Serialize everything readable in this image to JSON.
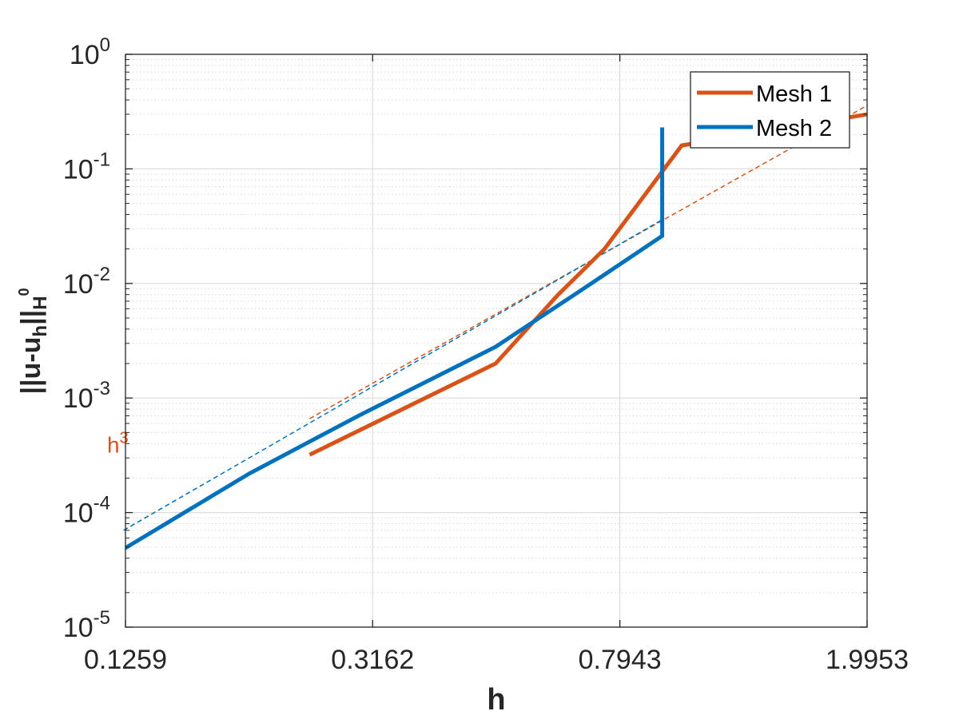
{
  "chart_data": {
    "type": "line",
    "x_scale": "log",
    "y_scale": "log",
    "xlim": [
      0.1259,
      1.9953
    ],
    "ylim": [
      1e-05,
      1
    ],
    "x_ticks": [
      0.1259,
      0.3162,
      0.7943,
      1.9953
    ],
    "x_tick_labels": [
      "0.1259",
      "0.3162",
      "0.7943",
      "1.9953"
    ],
    "y_ticks": [
      {
        "value": 1e-05,
        "base": "10",
        "exp": "-5"
      },
      {
        "value": 0.0001,
        "base": "10",
        "exp": "-4"
      },
      {
        "value": 0.001,
        "base": "10",
        "exp": "-3"
      },
      {
        "value": 0.01,
        "base": "10",
        "exp": "-2"
      },
      {
        "value": 0.1,
        "base": "10",
        "exp": "-1"
      },
      {
        "value": 1,
        "base": "10",
        "exp": "0"
      }
    ],
    "xlabel": "h",
    "ylabel": {
      "main": "||u-u",
      "sub1": "h",
      "mid": "||",
      "sub2": "H",
      "sup": "0"
    },
    "grid": true,
    "minor_grid": true,
    "legend_position": "top-right",
    "series": [
      {
        "name": "Mesh 1",
        "color": "#D95319",
        "x": [
          0.25,
          0.5,
          0.63,
          0.75,
          1.0,
          2.0
        ],
        "y": [
          0.00032,
          0.002,
          0.0079,
          0.02,
          0.16,
          0.3
        ]
      },
      {
        "name": "Mesh 2",
        "color": "#0072BD",
        "x": [
          0.125,
          0.2,
          0.3,
          0.5,
          0.7,
          0.93,
          0.93
        ],
        "y": [
          4.8e-05,
          0.00022,
          0.0007,
          0.0028,
          0.0093,
          0.026,
          0.23
        ]
      }
    ],
    "reference_lines": [
      {
        "series": "Mesh 1",
        "color": "#D95319",
        "x": [
          0.25,
          2.0
        ],
        "y": [
          0.00066,
          0.36
        ]
      },
      {
        "series": "Mesh 2",
        "color": "#0072BD",
        "x": [
          0.125,
          0.93
        ],
        "y": [
          7e-05,
          0.036
        ]
      }
    ],
    "annotations": [
      {
        "base": "h",
        "sup": "3",
        "color": "#D95319",
        "x": 0.12,
        "y": 0.00038
      }
    ]
  }
}
